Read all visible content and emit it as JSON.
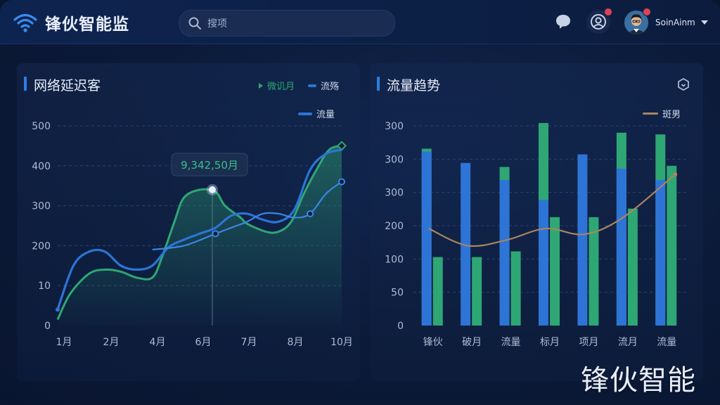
{
  "app": {
    "title": "锋伙智能监"
  },
  "search": {
    "placeholder": "搜项"
  },
  "profile": {
    "name": "SoinAinm"
  },
  "colors": {
    "green": "#2ea774",
    "blue": "#2d74d6",
    "brown": "#a98560",
    "accent": "#2f7fe0"
  },
  "icons": [
    "wifi-icon",
    "search-icon",
    "chat-icon",
    "user-icon",
    "avatar",
    "chevron-down-icon",
    "settings-icon"
  ],
  "left_panel": {
    "title": "网络延迟客",
    "legend": [
      {
        "label": "微讥月",
        "color": "#2ea774",
        "icon": "triangle"
      },
      {
        "label": "流殇",
        "color": "#2d74d6",
        "icon": "dash"
      },
      {
        "label": "流量",
        "color": "#2d74d6",
        "icon": "line"
      }
    ],
    "tooltip": "9,342,50月"
  },
  "right_panel": {
    "title": "流量趋势",
    "legend": [
      {
        "label": "斑男",
        "color": "#a98560",
        "icon": "line"
      }
    ]
  },
  "watermark": "锋伙智能",
  "chart_data": [
    {
      "type": "line",
      "title": "网络延迟客",
      "y_ticks": [
        "500",
        "400",
        "300",
        "200",
        "10",
        "0"
      ],
      "x_ticks": [
        "1月",
        "2月",
        "4月",
        "6月",
        "7月",
        "8月",
        "10月"
      ],
      "ylim": [
        0,
        500
      ],
      "grid": true,
      "series": [
        {
          "name": "微讥月",
          "color": "#2ea774",
          "x": [
            1,
            1.4,
            2,
            2.5,
            3,
            3.5,
            4,
            4.3,
            4.7,
            5,
            5.5,
            6,
            6.3,
            6.8,
            7,
            7.6,
            8,
            8.4,
            8.8,
            9.2,
            9.6,
            10
          ],
          "values": [
            15,
            80,
            130,
            140,
            135,
            120,
            120,
            170,
            260,
            320,
            340,
            335,
            300,
            270,
            255,
            235,
            235,
            260,
            330,
            390,
            440,
            450
          ]
        },
        {
          "name": "流殇",
          "color": "#2d74d6",
          "x": [
            1,
            1.5,
            2,
            2.5,
            3,
            3.5,
            4,
            4.5,
            5,
            5.5,
            6,
            6.5,
            7,
            7.5,
            8,
            8.5,
            9,
            9.5,
            10
          ],
          "values": [
            40,
            150,
            185,
            185,
            150,
            140,
            150,
            195,
            215,
            230,
            245,
            275,
            280,
            265,
            260,
            290,
            390,
            430,
            440
          ]
        },
        {
          "name": "流量",
          "color": "#2d74d6",
          "x": [
            4,
            5,
            6,
            6.5,
            7,
            7.5,
            8,
            8.5,
            9,
            9.5,
            10
          ],
          "values": [
            190,
            200,
            230,
            245,
            260,
            280,
            280,
            270,
            280,
            330,
            360
          ]
        }
      ],
      "tooltip": {
        "x": "6月",
        "label": "9,342,50月"
      }
    },
    {
      "type": "bar",
      "title": "流量趋势",
      "categories": [
        "锋伙",
        "破月",
        "流量",
        "标月",
        "项月",
        "流月",
        "流量"
      ],
      "y_ticks": [
        "300",
        "300",
        "300",
        "200",
        "100",
        "50",
        "0"
      ],
      "grid": true,
      "ylim": [
        0,
        350
      ],
      "series": [
        {
          "name": "blue",
          "color": "#2d74d6",
          "values": [
            305,
            285,
            255,
            220,
            300,
            275,
            255
          ]
        },
        {
          "name": "green-cap",
          "color": "#2ea774",
          "values": [
            310,
            0,
            278,
            355,
            0,
            338,
            335
          ]
        },
        {
          "name": "green",
          "color": "#2ea774",
          "values": [
            120,
            120,
            130,
            190,
            190,
            205,
            280
          ]
        },
        {
          "name": "斑男",
          "color": "#a98560",
          "values": [
            170,
            140,
            150,
            170,
            160,
            190,
            265
          ]
        }
      ]
    }
  ]
}
